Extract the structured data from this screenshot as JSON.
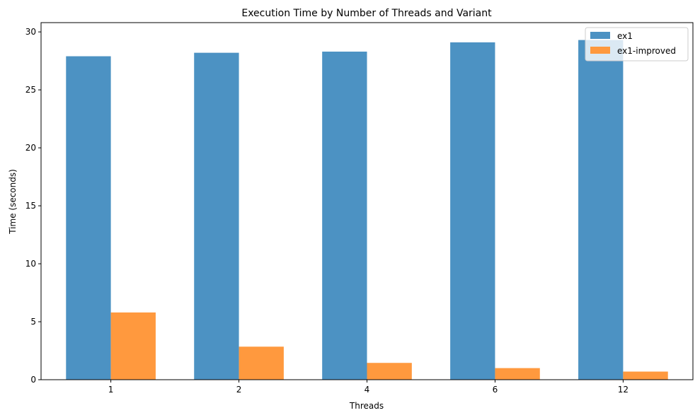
{
  "chart_data": {
    "type": "bar",
    "title": "Execution Time by Number of Threads and Variant",
    "xlabel": "Threads",
    "ylabel": "Time (seconds)",
    "categories": [
      "1",
      "2",
      "4",
      "6",
      "12"
    ],
    "series": [
      {
        "name": "ex1",
        "color": "#4c92c3",
        "values": [
          27.9,
          28.2,
          28.3,
          29.1,
          29.3
        ]
      },
      {
        "name": "ex1-improved",
        "color": "#ff993e",
        "values": [
          5.8,
          2.85,
          1.45,
          1.0,
          0.7
        ]
      }
    ],
    "ylim": [
      0,
      30.8
    ],
    "yticks": [
      0,
      5,
      10,
      15,
      20,
      25,
      30
    ],
    "grid": false,
    "legend_position": "top-right"
  }
}
